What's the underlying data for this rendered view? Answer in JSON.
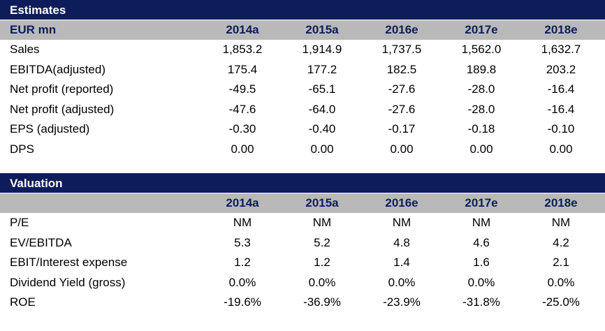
{
  "estimates": {
    "title": "Estimates",
    "unit_label": "EUR mn",
    "years": [
      "2014a",
      "2015a",
      "2016e",
      "2017e",
      "2018e"
    ],
    "rows": [
      {
        "label": "Sales",
        "values": [
          "1,853.2",
          "1,914.9",
          "1,737.5",
          "1,562.0",
          "1,632.7"
        ]
      },
      {
        "label": "EBITDA(adjusted)",
        "values": [
          "175.4",
          "177.2",
          "182.5",
          "189.8",
          "203.2"
        ]
      },
      {
        "label": "Net profit (reported)",
        "values": [
          "-49.5",
          "-65.1",
          "-27.6",
          "-28.0",
          "-16.4"
        ]
      },
      {
        "label": "Net profit (adjusted)",
        "values": [
          "-47.6",
          "-64.0",
          "-27.6",
          "-28.0",
          "-16.4"
        ]
      },
      {
        "label": "EPS (adjusted)",
        "values": [
          "-0.30",
          "-0.40",
          "-0.17",
          "-0.18",
          "-0.10"
        ]
      },
      {
        "label": "DPS",
        "values": [
          "0.00",
          "0.00",
          "0.00",
          "0.00",
          "0.00"
        ]
      }
    ]
  },
  "valuation": {
    "title": "Valuation",
    "years": [
      "2014a",
      "2015a",
      "2016e",
      "2017e",
      "2018e"
    ],
    "rows": [
      {
        "label": "P/E",
        "values": [
          "NM",
          "NM",
          "NM",
          "NM",
          "NM"
        ]
      },
      {
        "label": "EV/EBITDA",
        "values": [
          "5.3",
          "5.2",
          "4.8",
          "4.6",
          "4.2"
        ]
      },
      {
        "label": "EBIT/Interest expense",
        "values": [
          "1.2",
          "1.2",
          "1.4",
          "1.6",
          "2.1"
        ]
      },
      {
        "label": "Dividend Yield (gross)",
        "values": [
          "0.0%",
          "0.0%",
          "0.0%",
          "0.0%",
          "0.0%"
        ]
      },
      {
        "label": "ROE",
        "values": [
          "-19.6%",
          "-36.9%",
          "-23.9%",
          "-31.8%",
          "-25.0%"
        ]
      }
    ]
  }
}
